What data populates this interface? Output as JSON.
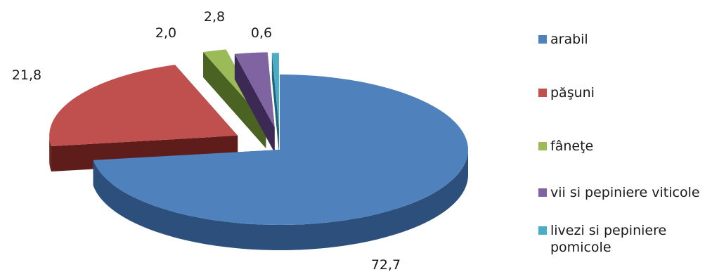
{
  "chart_data": {
    "type": "pie",
    "style": "3d-exploded",
    "title": "",
    "slices": [
      {
        "label": "arabil",
        "value": 72.7,
        "display": "72,7",
        "color": "#4f81bd",
        "side": "#2c4f7c"
      },
      {
        "label": "păşuni",
        "value": 21.8,
        "display": "21,8",
        "color": "#c0504d",
        "side": "#5e1d1b"
      },
      {
        "label": "fâneţe",
        "value": 2.0,
        "display": "2,0",
        "color": "#9bbb59",
        "side": "#4a6322"
      },
      {
        "label": "vii si pepiniere viticole",
        "value": 2.8,
        "display": "2,8",
        "color": "#8064a2",
        "side": "#3c2a55"
      },
      {
        "label": "livezi si pepiniere pomicole",
        "value": 0.6,
        "display": "0,6",
        "color": "#4bacc6",
        "side": "#1f6478"
      }
    ],
    "legend_position": "right"
  }
}
